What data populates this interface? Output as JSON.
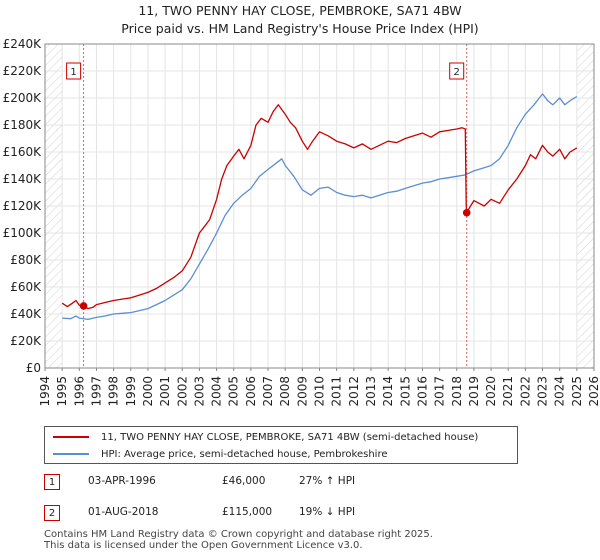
{
  "chart_data": {
    "type": "line",
    "title_line1": "11, TWO PENNY HAY CLOSE, PEMBROKE, SA71 4BW",
    "title_line2": "Price paid vs. HM Land Registry's House Price Index (HPI)",
    "xlim": [
      1994,
      2026
    ],
    "ylim": [
      0,
      240000
    ],
    "x_ticks": [
      "1994",
      "1995",
      "1996",
      "1997",
      "1998",
      "1999",
      "2000",
      "2001",
      "2002",
      "2003",
      "2004",
      "2005",
      "2006",
      "2007",
      "2008",
      "2009",
      "2010",
      "2011",
      "2012",
      "2013",
      "2014",
      "2015",
      "2016",
      "2017",
      "2018",
      "2019",
      "2020",
      "2021",
      "2022",
      "2023",
      "2024",
      "2025",
      "2026"
    ],
    "y_ticks": [
      {
        "label": "£0",
        "value": 0
      },
      {
        "label": "£20K",
        "value": 20000
      },
      {
        "label": "£40K",
        "value": 40000
      },
      {
        "label": "£60K",
        "value": 60000
      },
      {
        "label": "£80K",
        "value": 80000
      },
      {
        "label": "£100K",
        "value": 100000
      },
      {
        "label": "£120K",
        "value": 120000
      },
      {
        "label": "£140K",
        "value": 140000
      },
      {
        "label": "£160K",
        "value": 160000
      },
      {
        "label": "£180K",
        "value": 180000
      },
      {
        "label": "£200K",
        "value": 200000
      },
      {
        "label": "£220K",
        "value": 220000
      },
      {
        "label": "£240K",
        "value": 240000
      }
    ],
    "hatched_before": 1995.0,
    "hatched_after": 2025.0,
    "series": [
      {
        "name": "11, TWO PENNY HAY CLOSE, PEMBROKE, SA71 4BW (semi-detached house)",
        "color": "#cc0000",
        "points": [
          [
            1995.0,
            48000
          ],
          [
            1995.3,
            45500
          ],
          [
            1995.6,
            48000
          ],
          [
            1995.8,
            50000
          ],
          [
            1996.0,
            46500
          ],
          [
            1996.25,
            46000
          ],
          [
            1996.5,
            44000
          ],
          [
            1996.8,
            45000
          ],
          [
            1997.0,
            47000
          ],
          [
            1997.5,
            48500
          ],
          [
            1998.0,
            50000
          ],
          [
            1998.5,
            51000
          ],
          [
            1999.0,
            52000
          ],
          [
            1999.5,
            54000
          ],
          [
            2000.0,
            56000
          ],
          [
            2000.5,
            59000
          ],
          [
            2001.0,
            63000
          ],
          [
            2001.5,
            67000
          ],
          [
            2002.0,
            72000
          ],
          [
            2002.5,
            82000
          ],
          [
            2003.0,
            100000
          ],
          [
            2003.3,
            105000
          ],
          [
            2003.6,
            110000
          ],
          [
            2004.0,
            125000
          ],
          [
            2004.3,
            140000
          ],
          [
            2004.6,
            150000
          ],
          [
            2005.0,
            157000
          ],
          [
            2005.3,
            162000
          ],
          [
            2005.6,
            155000
          ],
          [
            2006.0,
            165000
          ],
          [
            2006.3,
            180000
          ],
          [
            2006.6,
            185000
          ],
          [
            2007.0,
            182000
          ],
          [
            2007.3,
            190000
          ],
          [
            2007.6,
            195000
          ],
          [
            2008.0,
            188000
          ],
          [
            2008.3,
            182000
          ],
          [
            2008.6,
            178000
          ],
          [
            2009.0,
            168000
          ],
          [
            2009.3,
            162000
          ],
          [
            2009.6,
            168000
          ],
          [
            2010.0,
            175000
          ],
          [
            2010.5,
            172000
          ],
          [
            2011.0,
            168000
          ],
          [
            2011.5,
            166000
          ],
          [
            2012.0,
            163000
          ],
          [
            2012.5,
            166000
          ],
          [
            2013.0,
            162000
          ],
          [
            2013.5,
            165000
          ],
          [
            2014.0,
            168000
          ],
          [
            2014.5,
            167000
          ],
          [
            2015.0,
            170000
          ],
          [
            2015.5,
            172000
          ],
          [
            2016.0,
            174000
          ],
          [
            2016.5,
            171000
          ],
          [
            2017.0,
            175000
          ],
          [
            2017.5,
            176000
          ],
          [
            2018.0,
            177000
          ],
          [
            2018.3,
            178000
          ],
          [
            2018.5,
            177000
          ],
          [
            2018.55,
            120000
          ],
          [
            2018.58,
            115000
          ],
          [
            2018.8,
            120000
          ],
          [
            2019.0,
            124000
          ],
          [
            2019.3,
            122000
          ],
          [
            2019.6,
            120000
          ],
          [
            2020.0,
            125000
          ],
          [
            2020.5,
            122000
          ],
          [
            2021.0,
            132000
          ],
          [
            2021.5,
            140000
          ],
          [
            2022.0,
            150000
          ],
          [
            2022.3,
            158000
          ],
          [
            2022.6,
            155000
          ],
          [
            2023.0,
            165000
          ],
          [
            2023.3,
            160000
          ],
          [
            2023.6,
            157000
          ],
          [
            2024.0,
            162000
          ],
          [
            2024.3,
            155000
          ],
          [
            2024.6,
            160000
          ],
          [
            2025.0,
            163000
          ]
        ]
      },
      {
        "name": "HPI: Average price, semi-detached house, Pembrokeshire",
        "color": "#5b8fd0",
        "points": [
          [
            1995.0,
            37000
          ],
          [
            1995.5,
            36500
          ],
          [
            1995.8,
            38500
          ],
          [
            1996.0,
            37000
          ],
          [
            1996.5,
            36000
          ],
          [
            1997.0,
            37500
          ],
          [
            1997.5,
            38500
          ],
          [
            1998.0,
            40000
          ],
          [
            1998.5,
            40500
          ],
          [
            1999.0,
            41000
          ],
          [
            1999.5,
            42500
          ],
          [
            2000.0,
            44000
          ],
          [
            2000.5,
            47000
          ],
          [
            2001.0,
            50000
          ],
          [
            2001.5,
            54000
          ],
          [
            2002.0,
            58000
          ],
          [
            2002.5,
            66000
          ],
          [
            2003.0,
            77000
          ],
          [
            2003.5,
            88000
          ],
          [
            2004.0,
            100000
          ],
          [
            2004.5,
            113000
          ],
          [
            2005.0,
            122000
          ],
          [
            2005.5,
            128000
          ],
          [
            2006.0,
            133000
          ],
          [
            2006.5,
            142000
          ],
          [
            2007.0,
            147000
          ],
          [
            2007.5,
            152000
          ],
          [
            2007.8,
            155000
          ],
          [
            2008.0,
            150000
          ],
          [
            2008.5,
            142000
          ],
          [
            2009.0,
            132000
          ],
          [
            2009.5,
            128000
          ],
          [
            2010.0,
            133000
          ],
          [
            2010.5,
            134000
          ],
          [
            2011.0,
            130000
          ],
          [
            2011.5,
            128000
          ],
          [
            2012.0,
            127000
          ],
          [
            2012.5,
            128000
          ],
          [
            2013.0,
            126000
          ],
          [
            2013.5,
            128000
          ],
          [
            2014.0,
            130000
          ],
          [
            2014.5,
            131000
          ],
          [
            2015.0,
            133000
          ],
          [
            2015.5,
            135000
          ],
          [
            2016.0,
            137000
          ],
          [
            2016.5,
            138000
          ],
          [
            2017.0,
            140000
          ],
          [
            2017.5,
            141000
          ],
          [
            2018.0,
            142000
          ],
          [
            2018.5,
            143000
          ],
          [
            2019.0,
            146000
          ],
          [
            2019.5,
            148000
          ],
          [
            2020.0,
            150000
          ],
          [
            2020.5,
            155000
          ],
          [
            2021.0,
            165000
          ],
          [
            2021.5,
            178000
          ],
          [
            2022.0,
            188000
          ],
          [
            2022.5,
            195000
          ],
          [
            2023.0,
            203000
          ],
          [
            2023.3,
            198000
          ],
          [
            2023.6,
            195000
          ],
          [
            2024.0,
            200000
          ],
          [
            2024.3,
            195000
          ],
          [
            2024.6,
            198000
          ],
          [
            2025.0,
            201000
          ]
        ]
      }
    ],
    "transactions": [
      {
        "id": "1",
        "x": 1996.25,
        "y": 46000,
        "date": "03-APR-1996",
        "price": "£46,000",
        "hpi": "27% ↑ HPI"
      },
      {
        "id": "2",
        "x": 2018.58,
        "y": 115000,
        "date": "01-AUG-2018",
        "price": "£115,000",
        "hpi": "19% ↓ HPI"
      }
    ]
  },
  "footer": {
    "line1": "Contains HM Land Registry data © Crown copyright and database right 2025.",
    "line2": "This data is licensed under the Open Government Licence v3.0."
  }
}
